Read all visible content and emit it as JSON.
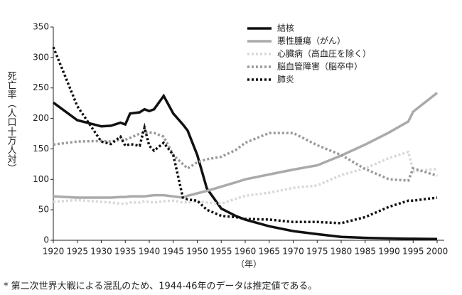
{
  "chart_data": {
    "type": "line",
    "y_label": "死亡率（人口十万人対）",
    "x_label": "（年）",
    "footnote": "* 第二次世界大戦による混乱のため、1944-46年のデータは推定値である。",
    "x": [
      1920,
      1925,
      1930,
      1932,
      1934,
      1935,
      1936,
      1938,
      1939,
      1940,
      1941,
      1943,
      1945,
      1947,
      1948,
      1950,
      1952,
      1955,
      1958,
      1960,
      1965,
      1970,
      1975,
      1980,
      1985,
      1990,
      1994,
      1995,
      2000
    ],
    "series": [
      {
        "name": "結核",
        "color": "#111111",
        "style": "solid",
        "values": [
          226,
          197,
          187,
          188,
          193,
          190,
          208,
          210,
          215,
          212,
          215,
          237,
          208,
          190,
          180,
          140,
          85,
          52,
          40,
          34,
          23,
          15,
          10,
          5.5,
          4,
          3,
          2.5,
          2.5,
          2
        ]
      },
      {
        "name": "悪性腫瘍（がん）",
        "color": "#aaaaaa",
        "style": "solid",
        "values": [
          72,
          70,
          70,
          70,
          71,
          71,
          72,
          72,
          72,
          73,
          74,
          74,
          72,
          70,
          73,
          77,
          81,
          88,
          95,
          100,
          108,
          116,
          123,
          139,
          157,
          177,
          195,
          211,
          242
        ]
      },
      {
        "name": "心臓病（高血圧を除く）",
        "color": "#d8d8d8",
        "style": "dotted",
        "values": [
          63,
          66,
          63,
          62,
          60,
          60,
          62,
          62,
          64,
          63,
          62,
          64,
          65,
          62,
          62,
          64,
          62,
          60,
          68,
          73,
          78,
          86,
          90,
          107,
          118,
          135,
          145,
          113,
          117
        ]
      },
      {
        "name": "脳血管障害（脳卒中）",
        "color": "#999999",
        "style": "dotted",
        "values": [
          157,
          162,
          163,
          162,
          165,
          165,
          168,
          175,
          177,
          177,
          176,
          170,
          140,
          125,
          118,
          128,
          133,
          137,
          148,
          160,
          176,
          176,
          156,
          140,
          117,
          100,
          98,
          118,
          106
        ]
      },
      {
        "name": "肺炎",
        "color": "#111111",
        "style": "dotted",
        "values": [
          317,
          220,
          162,
          158,
          170,
          155,
          158,
          155,
          185,
          155,
          147,
          160,
          140,
          70,
          67,
          65,
          50,
          40,
          38,
          35,
          34,
          30,
          30,
          28,
          38,
          55,
          65,
          65,
          70
        ]
      }
    ],
    "xlim": [
      1920,
      2000
    ],
    "xticks": [
      1920,
      1925,
      1930,
      1935,
      1940,
      1945,
      1950,
      1955,
      1960,
      1965,
      1970,
      1975,
      1980,
      1985,
      1990,
      1995,
      2000
    ],
    "ylim": [
      0,
      350
    ],
    "yticks": [
      0,
      50,
      100,
      150,
      200,
      250,
      300,
      350
    ],
    "grid": false,
    "legend": "top-right"
  }
}
